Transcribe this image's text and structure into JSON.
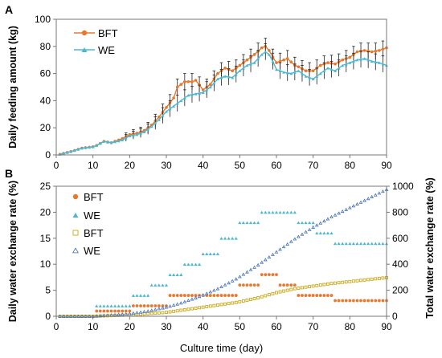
{
  "chart_data": [
    {
      "panel": "A",
      "type": "line",
      "xlabel": "",
      "ylabel": "Daily feeding amount (kg)",
      "xlim": [
        0,
        90
      ],
      "ylim": [
        0,
        100
      ],
      "xticks": [
        0,
        10,
        20,
        30,
        40,
        50,
        60,
        70,
        80,
        90
      ],
      "yticks": [
        0,
        20,
        40,
        60,
        80,
        100
      ],
      "grid": false,
      "legend": "top-left",
      "error_bars": true,
      "series": [
        {
          "name": "BFT",
          "color": "#E8782C",
          "marker": "circle",
          "keyframes": [
            [
              1,
              0.5
            ],
            [
              4,
              2.5
            ],
            [
              7,
              5
            ],
            [
              10,
              6
            ],
            [
              11,
              7
            ],
            [
              13,
              10
            ],
            [
              15,
              9
            ],
            [
              18,
              12
            ],
            [
              20,
              15
            ],
            [
              22,
              16
            ],
            [
              24,
              18
            ],
            [
              26,
              22
            ],
            [
              28,
              28
            ],
            [
              30,
              35
            ],
            [
              32,
              42
            ],
            [
              33,
              50
            ],
            [
              35,
              54
            ],
            [
              37,
              54
            ],
            [
              38,
              55
            ],
            [
              40,
              48
            ],
            [
              42,
              52
            ],
            [
              44,
              60
            ],
            [
              46,
              64
            ],
            [
              48,
              62
            ],
            [
              50,
              66
            ],
            [
              52,
              70
            ],
            [
              54,
              74
            ],
            [
              56,
              79
            ],
            [
              57,
              80
            ],
            [
              58,
              77
            ],
            [
              59,
              72
            ],
            [
              60,
              68
            ],
            [
              62,
              70
            ],
            [
              63,
              71
            ],
            [
              65,
              66
            ],
            [
              66,
              65
            ],
            [
              68,
              62
            ],
            [
              70,
              62
            ],
            [
              72,
              66
            ],
            [
              74,
              68
            ],
            [
              76,
              67
            ],
            [
              78,
              70
            ],
            [
              80,
              72
            ],
            [
              82,
              76
            ],
            [
              84,
              77
            ],
            [
              86,
              76
            ],
            [
              88,
              77
            ],
            [
              90,
              79
            ]
          ],
          "error": 6
        },
        {
          "name": "WE",
          "color": "#4BB8D2",
          "marker": "triangle",
          "keyframes": [
            [
              1,
              0.5
            ],
            [
              4,
              2.5
            ],
            [
              7,
              5
            ],
            [
              10,
              6
            ],
            [
              11,
              7
            ],
            [
              13,
              10
            ],
            [
              15,
              9
            ],
            [
              18,
              11
            ],
            [
              20,
              14
            ],
            [
              22,
              15
            ],
            [
              24,
              17
            ],
            [
              26,
              21
            ],
            [
              28,
              26
            ],
            [
              30,
              32
            ],
            [
              32,
              36
            ],
            [
              34,
              40
            ],
            [
              36,
              44
            ],
            [
              38,
              45
            ],
            [
              40,
              46
            ],
            [
              42,
              50
            ],
            [
              44,
              56
            ],
            [
              46,
              58
            ],
            [
              48,
              57
            ],
            [
              50,
              62
            ],
            [
              52,
              66
            ],
            [
              54,
              68
            ],
            [
              56,
              74
            ],
            [
              57,
              76
            ],
            [
              58,
              74
            ],
            [
              59,
              69
            ],
            [
              60,
              63
            ],
            [
              62,
              61
            ],
            [
              64,
              60
            ],
            [
              66,
              62
            ],
            [
              68,
              58
            ],
            [
              70,
              56
            ],
            [
              72,
              60
            ],
            [
              74,
              64
            ],
            [
              76,
              62
            ],
            [
              78,
              66
            ],
            [
              80,
              68
            ],
            [
              82,
              70
            ],
            [
              84,
              71
            ],
            [
              86,
              69
            ],
            [
              88,
              68
            ],
            [
              90,
              66
            ]
          ],
          "error": 6
        }
      ]
    },
    {
      "panel": "B",
      "type": "scatter",
      "xlabel": "Culture time (day)",
      "ylabel": "Daily water exchange rate (%)",
      "y2label": "Total water exchange rate (%)",
      "xlim": [
        0,
        90
      ],
      "ylim": [
        0,
        25
      ],
      "y2lim": [
        0,
        1000
      ],
      "xticks": [
        0,
        10,
        20,
        30,
        40,
        50,
        60,
        70,
        80,
        90
      ],
      "yticks": [
        0,
        5,
        10,
        15,
        20,
        25
      ],
      "y2ticks": [
        0,
        200,
        400,
        600,
        800,
        1000
      ],
      "grid": false,
      "legend": "top-left",
      "series": [
        {
          "name": "BFT",
          "axis": "left",
          "color": "#E8782C",
          "marker": "circle",
          "steps": [
            [
              1,
              10,
              0
            ],
            [
              11,
              20,
              1
            ],
            [
              21,
              30,
              2
            ],
            [
              31,
              49,
              4
            ],
            [
              50,
              55,
              6
            ],
            [
              56,
              60,
              8
            ],
            [
              61,
              65,
              6
            ],
            [
              66,
              75,
              4
            ],
            [
              76,
              90,
              3
            ]
          ]
        },
        {
          "name": "WE",
          "axis": "left",
          "color": "#4BB8D2",
          "marker": "triangle",
          "steps": [
            [
              1,
              10,
              0
            ],
            [
              11,
              20,
              2
            ],
            [
              21,
              25,
              4
            ],
            [
              26,
              30,
              6
            ],
            [
              31,
              34,
              8
            ],
            [
              35,
              39,
              10
            ],
            [
              40,
              44,
              12
            ],
            [
              45,
              49,
              15
            ],
            [
              50,
              55,
              18
            ],
            [
              56,
              65,
              20
            ],
            [
              66,
              70,
              18
            ],
            [
              71,
              75,
              16
            ],
            [
              76,
              90,
              14
            ]
          ]
        },
        {
          "name": "BFT",
          "axis": "right",
          "color": "#C9A818",
          "marker": "square-open",
          "cumulative_of_series": 0
        },
        {
          "name": "WE",
          "axis": "right",
          "color": "#3F6FB5",
          "marker": "triangle-open",
          "cumulative_of_series": 1
        }
      ]
    }
  ]
}
